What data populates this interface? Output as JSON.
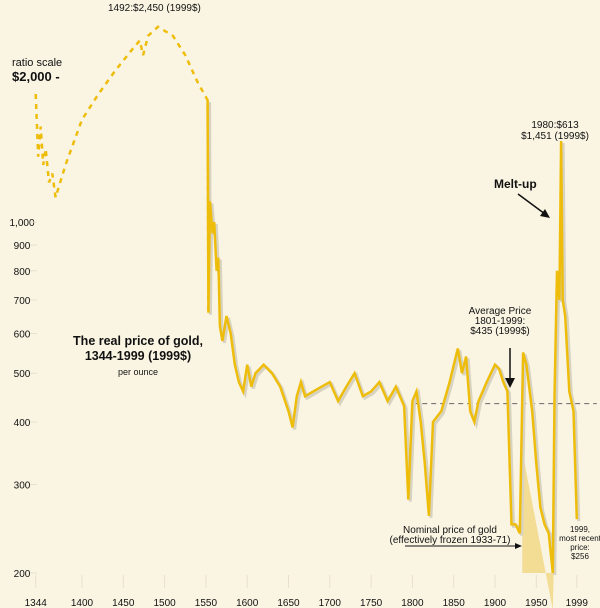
{
  "chart_data": {
    "type": "line",
    "title": "The real price of gold, 1344-1999 (1999$)",
    "subtitle": "per ounce",
    "scale_note": "ratio scale",
    "y_scale": "log",
    "ylim": [
      190,
      2500
    ],
    "xlim": [
      1344,
      1999
    ],
    "y_ticks": [
      {
        "value": 2000,
        "label": "$2,000 -"
      },
      {
        "value": 1000,
        "label": "1,000"
      },
      {
        "value": 900,
        "label": "900"
      },
      {
        "value": 800,
        "label": "800"
      },
      {
        "value": 700,
        "label": "700"
      },
      {
        "value": 600,
        "label": "600"
      },
      {
        "value": 500,
        "label": "500"
      },
      {
        "value": 400,
        "label": "400"
      },
      {
        "value": 300,
        "label": "300"
      },
      {
        "value": 200,
        "label": "200"
      }
    ],
    "x_ticks": [
      {
        "value": 1344,
        "label": "1344"
      },
      {
        "value": 1400,
        "label": "1400"
      },
      {
        "value": 1450,
        "label": "1450"
      },
      {
        "value": 1500,
        "label": "1500"
      },
      {
        "value": 1550,
        "label": "1550"
      },
      {
        "value": 1600,
        "label": "1600"
      },
      {
        "value": 1650,
        "label": "1650"
      },
      {
        "value": 1700,
        "label": "1700"
      },
      {
        "value": 1750,
        "label": "1750"
      },
      {
        "value": 1800,
        "label": "1800"
      },
      {
        "value": 1850,
        "label": "1850"
      },
      {
        "value": 1900,
        "label": "1900"
      },
      {
        "value": 1950,
        "label": "1950"
      },
      {
        "value": 1999,
        "label": "1999"
      }
    ],
    "series_dashed_until": 1553,
    "x": [
      1344,
      1347,
      1350,
      1353,
      1356,
      1360,
      1364,
      1368,
      1380,
      1400,
      1420,
      1440,
      1460,
      1470,
      1474,
      1480,
      1492,
      1510,
      1525,
      1540,
      1552,
      1553,
      1555,
      1558,
      1560,
      1563,
      1565,
      1567,
      1570,
      1575,
      1580,
      1585,
      1590,
      1595,
      1600,
      1605,
      1610,
      1620,
      1630,
      1640,
      1650,
      1655,
      1660,
      1665,
      1670,
      1680,
      1690,
      1700,
      1710,
      1720,
      1730,
      1740,
      1750,
      1760,
      1770,
      1780,
      1790,
      1795,
      1800,
      1805,
      1810,
      1815,
      1820,
      1825,
      1835,
      1845,
      1855,
      1860,
      1865,
      1870,
      1875,
      1880,
      1890,
      1895,
      1900,
      1905,
      1910,
      1915,
      1920,
      1925,
      1930,
      1934,
      1938,
      1945,
      1950,
      1955,
      1960,
      1965,
      1970,
      1972,
      1975,
      1978,
      1980,
      1982,
      1985,
      1990,
      1995,
      1999
    ],
    "values": [
      1800,
      1350,
      1550,
      1300,
      1400,
      1200,
      1250,
      1120,
      1300,
      1600,
      1800,
      2000,
      2200,
      2300,
      2150,
      2350,
      2450,
      2350,
      2150,
      1900,
      1750,
      660,
      1100,
      950,
      1000,
      800,
      850,
      620,
      580,
      650,
      600,
      520,
      480,
      460,
      520,
      470,
      500,
      520,
      500,
      470,
      420,
      390,
      450,
      480,
      450,
      460,
      470,
      480,
      440,
      470,
      500,
      450,
      460,
      480,
      440,
      470,
      430,
      280,
      440,
      460,
      400,
      330,
      260,
      400,
      420,
      480,
      560,
      500,
      540,
      420,
      400,
      440,
      480,
      500,
      520,
      510,
      480,
      460,
      250,
      250,
      240,
      550,
      520,
      420,
      330,
      270,
      250,
      240,
      200,
      450,
      800,
      700,
      1451,
      700,
      650,
      460,
      420,
      256
    ],
    "average": {
      "value": 435,
      "from": 1801,
      "to": 1999
    },
    "shaded": {
      "label": "Nominal price of gold (effectively frozen 1933-71)",
      "from": 1933,
      "to": 1971
    },
    "annotations": {
      "peak_1492": "1492:$2,450 (1999$)",
      "peak_1980_a": "1980:$613",
      "peak_1980_b": "$1,451 (1999$)",
      "melt_up": "Melt-up",
      "avg_1": "Average Price",
      "avg_2": "1801-1999:",
      "avg_3": "$435 (1999$)",
      "nominal_1": "Nominal price of gold",
      "nominal_2": "(effectively frozen 1933-71)",
      "last_1": "1999,",
      "last_2": "most recent",
      "last_3": "price:",
      "last_4": "$256"
    },
    "colors": {
      "line": "#eebd0c",
      "shadow": "#d8d2c0",
      "fill": "#f3dd95",
      "background": "#faf5e3",
      "average": "#666666"
    }
  }
}
